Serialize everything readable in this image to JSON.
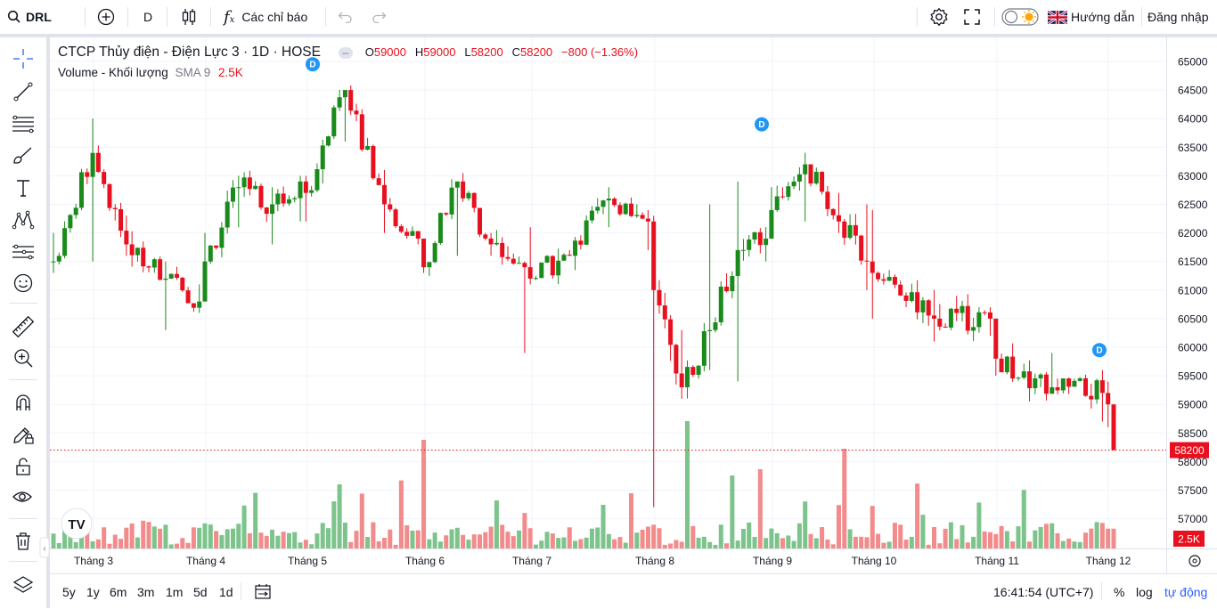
{
  "toolbar": {
    "symbol": "DRL",
    "interval": "D",
    "indicators_label": "Các chỉ báo",
    "guide_label": "Hướng dẫn",
    "login_label": "Đăng nhập"
  },
  "legend": {
    "title": "CTCP Thủy điện - Điện Lực 3 · 1D · HOSE",
    "o_label": "O",
    "o_value": "59000",
    "h_label": "H",
    "h_value": "59000",
    "l_label": "L",
    "l_value": "58200",
    "c_label": "C",
    "c_value": "58200",
    "change": "−800 (−1.36%)",
    "volume_label": "Volume - Khối lượng",
    "sma_label": "SMA 9",
    "volume_value": "2.5K"
  },
  "bottombar": {
    "ranges": [
      "5y",
      "1y",
      "6m",
      "3m",
      "1m",
      "5d",
      "1d"
    ],
    "clock": "16:41:54 (UTC+7)",
    "percent_label": "%",
    "log_label": "log",
    "auto_label": "tự động"
  },
  "colors": {
    "up": "#1a8a1a",
    "down": "#e8101e",
    "volume_up": "#7cc48b",
    "volume_down": "#f28b8b",
    "accent": "#2962ff",
    "dividend_marker": "#2196f3"
  },
  "chart_data": {
    "type": "candlestick",
    "title": "CTCP Thủy điện - Điện Lực 3 · 1D · HOSE",
    "y_ticks": [
      65000,
      64500,
      64000,
      63500,
      63000,
      62500,
      62000,
      61500,
      61000,
      60500,
      60000,
      59500,
      59000,
      58500,
      58000,
      57500,
      57000
    ],
    "ylim": [
      56500,
      65250
    ],
    "x_ticks": [
      "Tháng 3",
      "Tháng 4",
      "Tháng 5",
      "Tháng 6",
      "Tháng 7",
      "Tháng 8",
      "Tháng 9",
      "Tháng 10",
      "Tháng 11",
      "Tháng 12"
    ],
    "last_price_label": "58200",
    "last_price": 58200,
    "volume_label": "2.5K",
    "dividend_markers": [
      {
        "text": "D",
        "month": "Tháng 5",
        "price": 64950
      },
      {
        "text": "D",
        "month": "Tháng 9",
        "price": 63900
      },
      {
        "text": "D",
        "month": "Tháng 12",
        "price": 59950
      }
    ],
    "anchors": [
      {
        "month": "Tháng 3",
        "price": 61500,
        "low": 61300,
        "high": 62000
      },
      {
        "month": "Tháng 3",
        "price": 63400,
        "low": 61500,
        "high": 64000
      },
      {
        "month": "Tháng 3",
        "price": 61800,
        "low": 61600,
        "high": 62300
      },
      {
        "month": "Tháng 3",
        "price": 61200,
        "low": 60300,
        "high": 61500
      },
      {
        "month": "Tháng 3",
        "price": 60800,
        "low": 60600,
        "high": 61100
      },
      {
        "month": "Tháng 4",
        "price": 61500,
        "low": 61200,
        "high": 62000
      },
      {
        "month": "Tháng 4",
        "price": 62800,
        "low": 62100,
        "high": 63000
      },
      {
        "month": "Tháng 4",
        "price": 62500,
        "low": 61800,
        "high": 62800
      },
      {
        "month": "Tháng 4",
        "price": 62900,
        "low": 62200,
        "high": 63000
      },
      {
        "month": "Tháng 5",
        "price": 62700,
        "low": 62200,
        "high": 63000
      },
      {
        "month": "Tháng 5",
        "price": 64500,
        "low": 63600,
        "high": 64500
      },
      {
        "month": "Tháng 5",
        "price": 62500,
        "low": 62000,
        "high": 63100
      },
      {
        "month": "Tháng 5",
        "price": 61900,
        "low": 61800,
        "high": 62000
      },
      {
        "month": "Tháng 6",
        "price": 61400,
        "low": 61300,
        "high": 61900
      },
      {
        "month": "Tháng 6",
        "price": 62900,
        "low": 61600,
        "high": 62900
      },
      {
        "month": "Tháng 6",
        "price": 61800,
        "low": 61600,
        "high": 62000
      },
      {
        "month": "Tháng 6",
        "price": 61400,
        "low": 59900,
        "high": 61500
      },
      {
        "month": "Tháng 7",
        "price": 61200,
        "low": 61100,
        "high": 62100
      },
      {
        "month": "Tháng 7",
        "price": 61600,
        "low": 61600,
        "high": 61700
      },
      {
        "month": "Tháng 7",
        "price": 62600,
        "low": 62100,
        "high": 62800
      },
      {
        "month": "Tháng 7",
        "price": 62200,
        "low": 61700,
        "high": 62400
      },
      {
        "month": "Tháng 8",
        "price": 61000,
        "low": 57200,
        "high": 62300
      },
      {
        "month": "Tháng 8",
        "price": 59300,
        "low": 59100,
        "high": 60300
      },
      {
        "month": "Tháng 8",
        "price": 60300,
        "low": 59600,
        "high": 62500
      },
      {
        "month": "Tháng 8",
        "price": 61700,
        "low": 59400,
        "high": 62900
      },
      {
        "month": "Tháng 8",
        "price": 61900,
        "low": 61500,
        "high": 62100
      },
      {
        "month": "Tháng 9",
        "price": 62400,
        "low": 62100,
        "high": 62800
      },
      {
        "month": "Tháng 9",
        "price": 63200,
        "low": 62200,
        "high": 63400
      },
      {
        "month": "Tháng 9",
        "price": 62200,
        "low": 62000,
        "high": 62700
      },
      {
        "month": "Tháng 9",
        "price": 61500,
        "low": 61000,
        "high": 62500
      },
      {
        "month": "Tháng 10",
        "price": 61300,
        "low": 60500,
        "high": 62400
      },
      {
        "month": "Tháng 10",
        "price": 60500,
        "low": 60100,
        "high": 61000
      },
      {
        "month": "Tháng 10",
        "price": 60500,
        "low": 60200,
        "high": 60700
      },
      {
        "month": "Tháng 11",
        "price": 59800,
        "low": 59500,
        "high": 60200
      },
      {
        "month": "Tháng 11",
        "price": 59300,
        "low": 59300,
        "high": 59900
      },
      {
        "month": "Tháng 11",
        "price": 59200,
        "low": 58700,
        "high": 59600
      },
      {
        "month": "Tháng 12",
        "price": 59000,
        "low": 58600,
        "high": 59400
      },
      {
        "month": "Tháng 12",
        "price": 59000,
        "low": 58000,
        "high": 59400
      },
      {
        "month": "Tháng 12",
        "price": 58200,
        "low": 58200,
        "high": 59000
      }
    ]
  }
}
